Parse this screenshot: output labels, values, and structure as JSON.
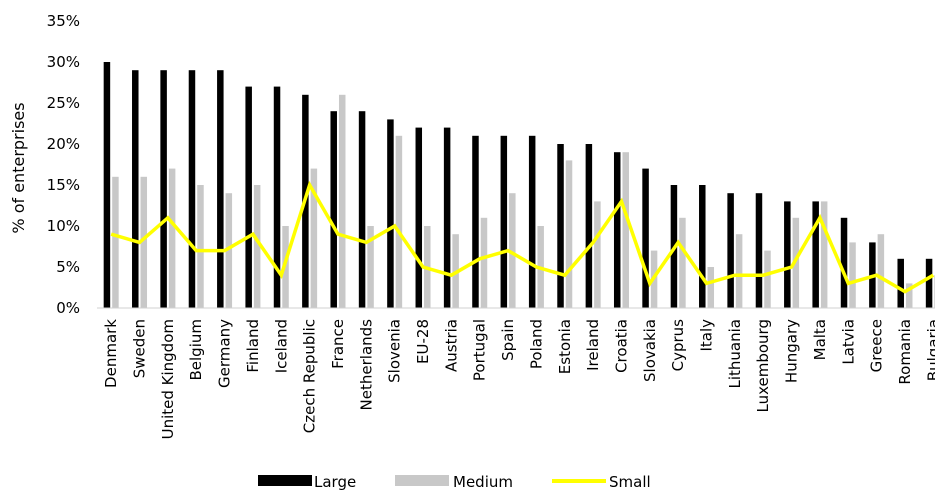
{
  "chart_data": {
    "type": "bar",
    "ylabel": "% of enterprises",
    "ylim": [
      0,
      35
    ],
    "yticks": [
      "0%",
      "5%",
      "10%",
      "15%",
      "20%",
      "25%",
      "30%",
      "35%"
    ],
    "categories": [
      "Denmark",
      "Sweden",
      "United Kingdom",
      "Belgium",
      "Germany",
      "Finland",
      "Iceland",
      "Czech Republic",
      "France",
      "Netherlands",
      "Slovenia",
      "EU-28",
      "Austria",
      "Portugal",
      "Spain",
      "Poland",
      "Estonia",
      "Ireland",
      "Croatia",
      "Slovakia",
      "Cyprus",
      "Italy",
      "Lithuania",
      "Luxembourg",
      "Hungary",
      "Malta",
      "Latvia",
      "Greece",
      "Romania",
      "Bulgaria"
    ],
    "series": [
      {
        "name": "Large",
        "kind": "bar",
        "color": "#000000",
        "values": [
          30,
          29,
          29,
          29,
          29,
          27,
          27,
          26,
          24,
          24,
          23,
          22,
          22,
          21,
          21,
          21,
          20,
          20,
          19,
          17,
          15,
          15,
          14,
          14,
          13,
          13,
          11,
          8,
          6,
          6
        ]
      },
      {
        "name": "Medium",
        "kind": "bar",
        "color": "#c8c8c8",
        "values": [
          16,
          16,
          17,
          15,
          14,
          15,
          10,
          17,
          26,
          10,
          21,
          10,
          9,
          11,
          14,
          10,
          18,
          13,
          19,
          7,
          11,
          5,
          9,
          7,
          11,
          13,
          8,
          9,
          3,
          4
        ]
      },
      {
        "name": "Small",
        "kind": "line",
        "color": "#ffff00",
        "values": [
          9,
          8,
          11,
          7,
          7,
          9,
          4,
          15,
          9,
          8,
          10,
          5,
          4,
          6,
          7,
          5,
          4,
          8,
          13,
          3,
          8,
          3,
          4,
          4,
          5,
          11,
          3,
          4,
          2,
          4
        ]
      }
    ],
    "legend_position": "bottom",
    "grid": false
  }
}
